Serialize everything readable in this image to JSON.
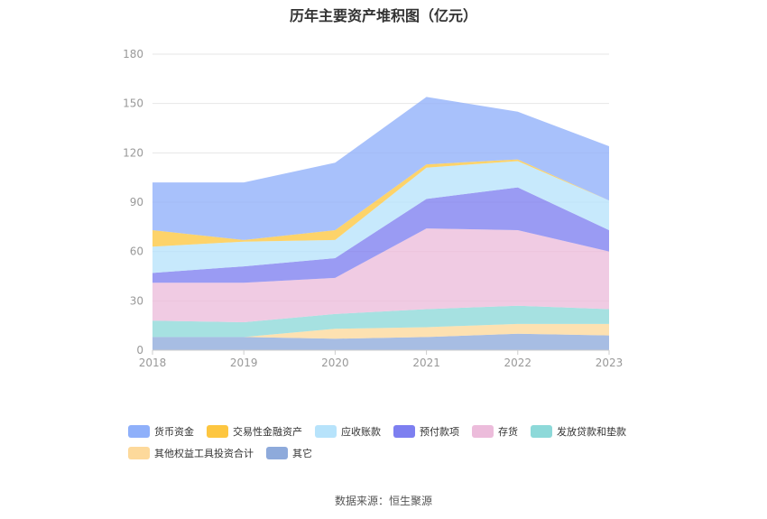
{
  "chart_data": {
    "type": "area",
    "stacked": true,
    "title": "历年主要资产堆积图（亿元）",
    "x": [
      "2018",
      "2019",
      "2020",
      "2021",
      "2022",
      "2023"
    ],
    "ylim": [
      0,
      180
    ],
    "yticks": [
      "0",
      "30",
      "60",
      "90",
      "120",
      "150",
      "180"
    ],
    "grid": true,
    "legend_position": "bottom",
    "series": [
      {
        "name": "其它",
        "color": "#8eaadb",
        "values": [
          8,
          8,
          7,
          8,
          10,
          9
        ]
      },
      {
        "name": "其他权益工具投资合计",
        "color": "#fdd99b",
        "values": [
          0,
          0,
          6,
          6,
          6,
          7
        ]
      },
      {
        "name": "发放贷款和垫款",
        "color": "#8dd9d9",
        "values": [
          10,
          9,
          9,
          11,
          11,
          9
        ]
      },
      {
        "name": "存货",
        "color": "#ecbcdb",
        "values": [
          23,
          24,
          22,
          49,
          46,
          35
        ]
      },
      {
        "name": "预付款项",
        "color": "#7d7ff0",
        "values": [
          6,
          10,
          12,
          18,
          26,
          13
        ]
      },
      {
        "name": "应收账款",
        "color": "#b7e3fb",
        "values": [
          16,
          15,
          11,
          19,
          16,
          18
        ]
      },
      {
        "name": "交易性金融资产",
        "color": "#fdc640",
        "values": [
          10,
          1,
          6,
          2,
          1,
          0
        ]
      },
      {
        "name": "货币资金",
        "color": "#8fb0fa",
        "values": [
          29,
          35,
          41,
          41,
          29,
          33
        ]
      }
    ],
    "legend_order": [
      "货币资金",
      "交易性金融资产",
      "应收账款",
      "预付款项",
      "存货",
      "发放贷款和垫款",
      "其他权益工具投资合计",
      "其它"
    ]
  },
  "source": "数据来源：恒生聚源"
}
